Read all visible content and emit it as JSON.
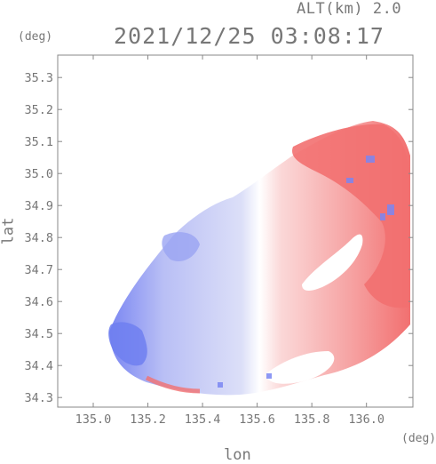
{
  "header": {
    "altitude": "ALT(km) 2.0",
    "timestamp": "2021/12/25 03:08:17"
  },
  "chart_data": {
    "type": "heatmap",
    "title": "2021/12/25 03:08:17",
    "xlabel": "lon",
    "ylabel": "lat",
    "x_unit": "(deg)",
    "y_unit": "(deg)",
    "xlim": [
      134.87,
      136.17
    ],
    "ylim": [
      34.27,
      35.37
    ],
    "x_ticks": [
      "135.0",
      "135.2",
      "135.4",
      "135.6",
      "135.8",
      "136.0"
    ],
    "x_tick_values": [
      135.0,
      135.2,
      135.4,
      135.6,
      135.8,
      136.0
    ],
    "y_ticks": [
      "34.3",
      "34.4",
      "34.5",
      "34.6",
      "34.7",
      "34.8",
      "34.9",
      "35.0",
      "35.1",
      "35.2",
      "35.3"
    ],
    "y_tick_values": [
      34.3,
      34.4,
      34.5,
      34.6,
      34.7,
      34.8,
      34.9,
      35.0,
      35.1,
      35.2,
      35.3
    ],
    "colorscale": {
      "negative": "#6f7ff0",
      "zero": "#ffffff",
      "positive": "#f26a6a"
    },
    "grid": false
  }
}
